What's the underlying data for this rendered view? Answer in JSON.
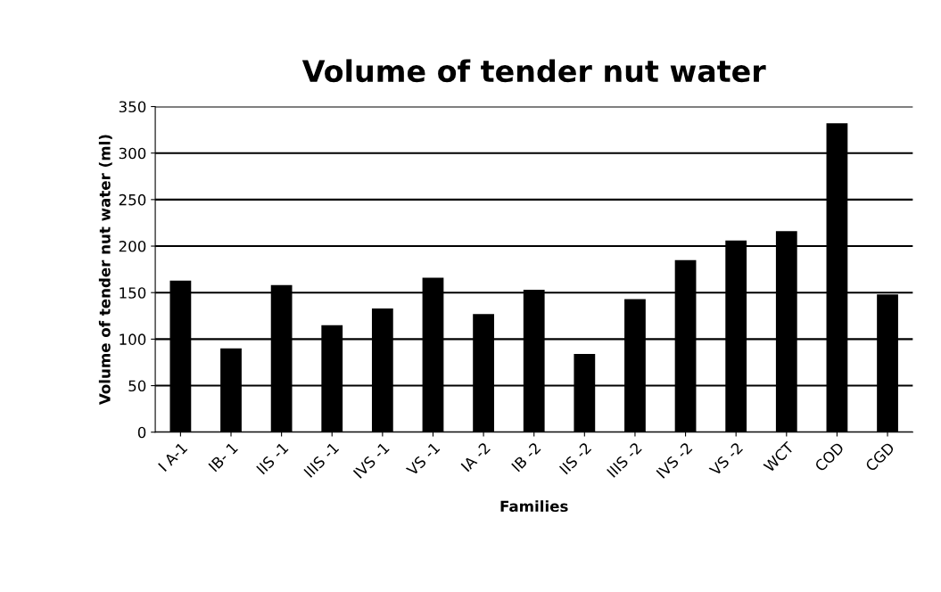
{
  "chart_data": {
    "type": "bar",
    "title": "Volume of tender nut water",
    "xlabel": "Families",
    "ylabel": "Volume of tender nut water (ml)",
    "categories": [
      "I A-1",
      "IB- 1",
      "IIS -1",
      "IIIS -1",
      "IVS -1",
      "VS -1",
      "IA -2",
      "IB -2",
      "IIS -2",
      "IIIS -2",
      "IVS -2",
      "VS -2",
      "WCT",
      "COD",
      "CGD"
    ],
    "values": [
      163,
      90,
      158,
      115,
      133,
      166,
      127,
      153,
      84,
      143,
      185,
      206,
      216,
      332,
      148
    ],
    "color": "#000000",
    "ylim": [
      0,
      350
    ],
    "yticks": [
      0,
      50,
      100,
      150,
      200,
      250,
      300,
      350
    ],
    "grid": "y"
  }
}
